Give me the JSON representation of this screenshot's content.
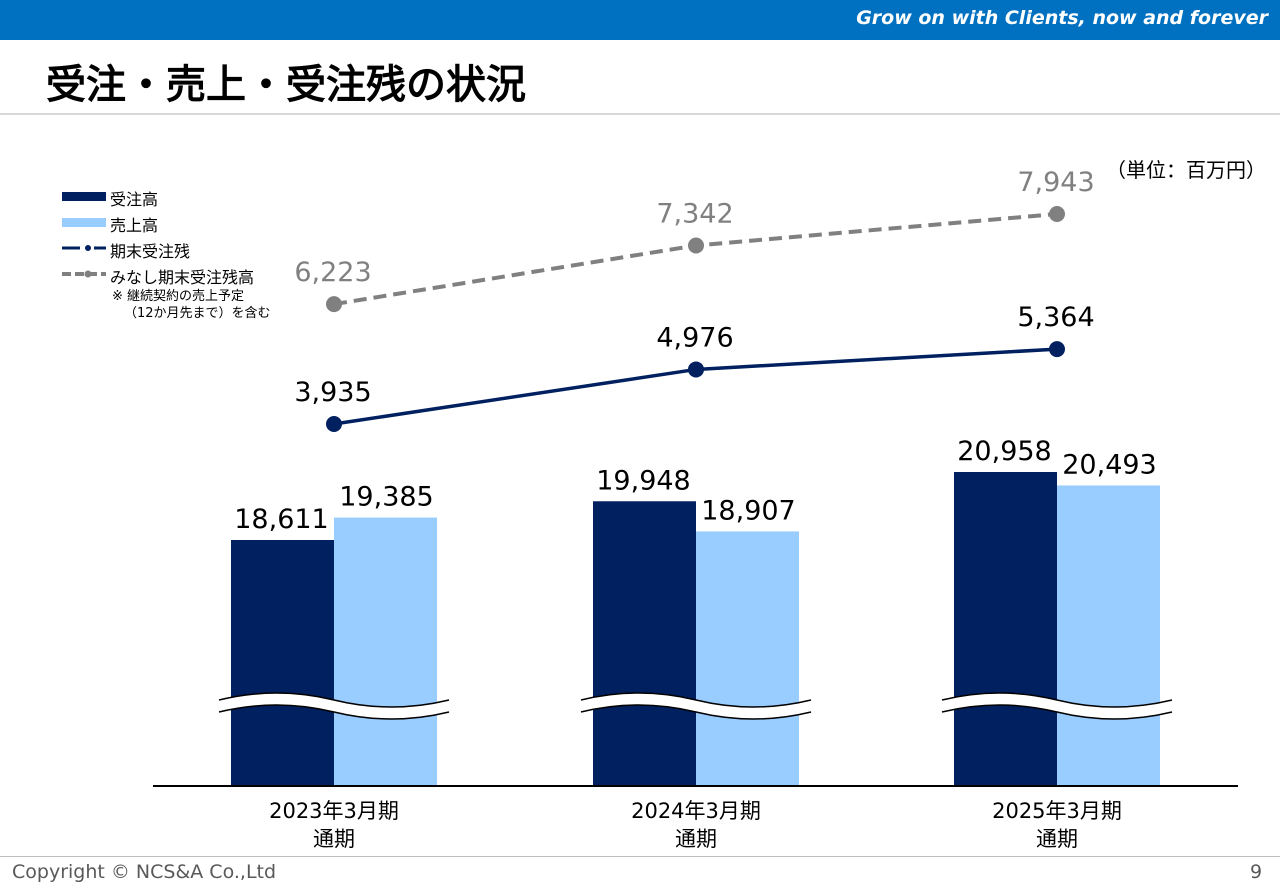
{
  "header": {
    "slogan": "Grow on with Clients, now and forever"
  },
  "title": "受注・売上・受注残の状況",
  "unit_label": "（単位：百万円）",
  "legend": {
    "items": [
      {
        "label": "受注高"
      },
      {
        "label": "売上高"
      },
      {
        "label": "期末受注残"
      },
      {
        "label": "みなし期末受注残高"
      }
    ],
    "note_line1": "※ 継続契約の売上予定",
    "note_line2": "（12か月先まで）を含む"
  },
  "colors": {
    "orders": "#002060",
    "sales": "#99ccff",
    "backlog": "#002060",
    "deemed_backlog": "#808080",
    "header": "#0070c0"
  },
  "chart_data": {
    "type": "bar",
    "categories": [
      "2023年3月期\n通期",
      "2024年3月期\n通期",
      "2025年3月期\n通期"
    ],
    "series": [
      {
        "name": "受注高",
        "type": "bar",
        "values": [
          18611,
          19948,
          20958
        ],
        "labels": [
          "18,611",
          "19,948",
          "20,958"
        ]
      },
      {
        "name": "売上高",
        "type": "bar",
        "values": [
          19385,
          18907,
          20493
        ],
        "labels": [
          "19,385",
          "18,907",
          "20,493"
        ]
      },
      {
        "name": "期末受注残",
        "type": "line",
        "values": [
          3935,
          4976,
          5364
        ],
        "labels": [
          "3,935",
          "4,976",
          "5,364"
        ]
      },
      {
        "name": "みなし期末受注残高",
        "type": "line",
        "style": "dashed",
        "values": [
          6223,
          7342,
          7943
        ],
        "labels": [
          "6,223",
          "7,342",
          "7,943"
        ]
      }
    ],
    "axis_break": true,
    "y_axis_visible": false,
    "legend_position": "top-left"
  },
  "footer": {
    "copyright": "Copyright © NCS&A Co.,Ltd",
    "page": "9"
  }
}
